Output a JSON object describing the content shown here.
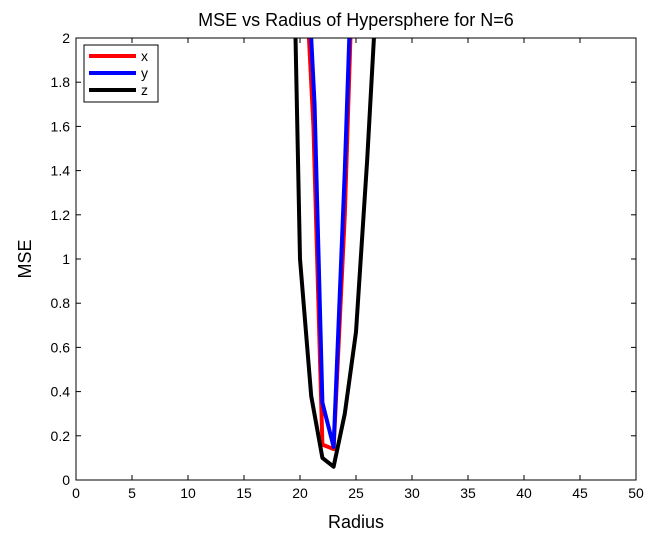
{
  "chart_data": {
    "type": "line",
    "title": "MSE vs Radius of Hypersphere for N=6",
    "xlabel": "Radius",
    "ylabel": "MSE",
    "xlim": [
      0,
      50
    ],
    "ylim": [
      0,
      2
    ],
    "xticks": [
      0,
      5,
      10,
      15,
      20,
      25,
      30,
      35,
      40,
      45,
      50
    ],
    "yticks": [
      0,
      0.2,
      0.4,
      0.6,
      0.8,
      1,
      1.2,
      1.4,
      1.6,
      1.8,
      2
    ],
    "grid": false,
    "legend_position": "top-left",
    "series": [
      {
        "name": "x",
        "color": "#ff0000",
        "x": [
          20.8,
          21.2,
          22,
          23,
          24,
          24.5
        ],
        "y": [
          2.0,
          1.6,
          0.16,
          0.14,
          1.2,
          2.0
        ]
      },
      {
        "name": "y",
        "color": "#0000ff",
        "x": [
          21.0,
          21.3,
          22,
          23,
          24,
          24.4
        ],
        "y": [
          2.0,
          1.7,
          0.35,
          0.15,
          1.4,
          2.0
        ]
      },
      {
        "name": "z",
        "color": "#000000",
        "x": [
          19.6,
          20,
          21,
          22,
          23,
          24,
          25,
          26,
          26.6
        ],
        "y": [
          2.0,
          1.0,
          0.38,
          0.1,
          0.06,
          0.3,
          0.67,
          1.45,
          2.0
        ]
      }
    ]
  }
}
